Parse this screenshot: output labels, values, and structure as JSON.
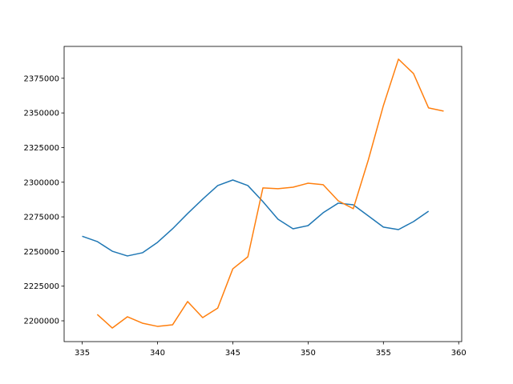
{
  "chart_data": {
    "type": "line",
    "x": [
      335,
      336,
      337,
      338,
      339,
      340,
      341,
      342,
      343,
      344,
      345,
      346,
      347,
      348,
      349,
      350,
      351,
      352,
      353,
      354,
      355,
      356,
      357,
      358,
      359
    ],
    "series": [
      {
        "color": "#1f77b4",
        "values": [
          2261000,
          2257200,
          2250200,
          2246800,
          2249100,
          2256600,
          2266400,
          2277400,
          2287800,
          2297600,
          2301600,
          2297600,
          2286000,
          2273300,
          2266400,
          2268700,
          2278000,
          2284900,
          2283700,
          2275700,
          2267600,
          2265800,
          2271600,
          2279100,
          null
        ]
      },
      {
        "color": "#ff7f0e",
        "values": [
          null,
          2204600,
          2194800,
          2202900,
          2198300,
          2196000,
          2197100,
          2213900,
          2202300,
          2209200,
          2237500,
          2246200,
          2295900,
          2295300,
          2296400,
          2299300,
          2298200,
          2286600,
          2280900,
          2316100,
          2355300,
          2388800,
          2378400,
          2353600,
          2351300
        ]
      }
    ],
    "xlim": [
      333.8,
      360.2
    ],
    "xticks": [
      335,
      340,
      345,
      350,
      355,
      360
    ],
    "ylim": [
      2185000,
      2398000
    ],
    "yticks": [
      2200000,
      2225000,
      2250000,
      2275000,
      2300000,
      2325000,
      2350000,
      2375000
    ]
  }
}
